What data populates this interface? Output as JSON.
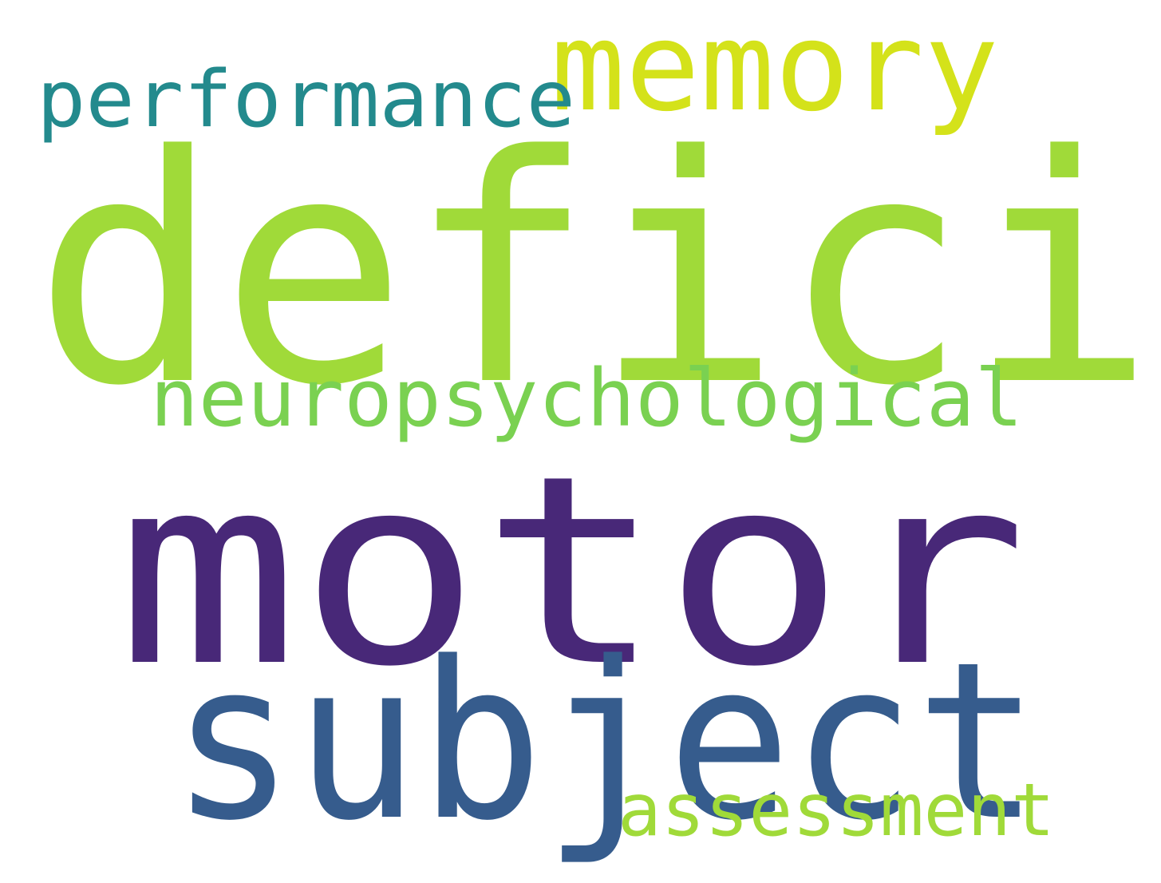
{
  "words": [
    {
      "text": "memory",
      "color": "#d4e21a"
    },
    {
      "text": "performance",
      "color": "#238a8d"
    },
    {
      "text": "deficit",
      "color": "#a0da39"
    },
    {
      "text": "neuropsychological",
      "color": "#7ad151"
    },
    {
      "text": "motor",
      "color": "#482878"
    },
    {
      "text": "subject",
      "color": "#365c8d"
    },
    {
      "text": "assessment",
      "color": "#a0da39"
    }
  ]
}
